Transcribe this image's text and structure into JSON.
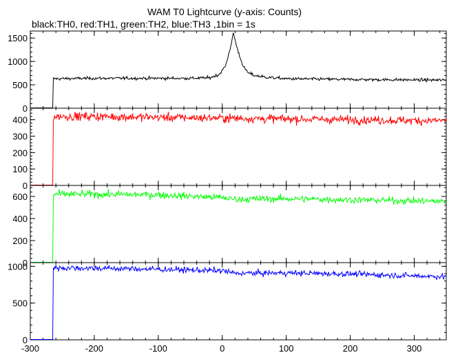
{
  "title": "WAM T0 Lightcurve (y-axis: Counts)",
  "subtitle": "black:TH0, red:TH1, green:TH2, blue:TH3 ,1bin = 1s",
  "chart_data": {
    "type": "line",
    "x_axis": {
      "range": [
        -300,
        350
      ],
      "ticks": [
        -300,
        -200,
        -100,
        0,
        100,
        200,
        300
      ]
    },
    "panels": [
      {
        "series_label": "TH0",
        "color": "#000000",
        "ylim": [
          0,
          1650
        ],
        "yticks": [
          0,
          500,
          1000,
          1500
        ],
        "points": [
          [
            -300,
            0
          ],
          [
            -265,
            0
          ],
          [
            -264,
            630
          ],
          [
            -200,
            640
          ],
          [
            -100,
            640
          ],
          [
            -50,
            640
          ],
          [
            -20,
            650
          ],
          [
            -5,
            720
          ],
          [
            5,
            900
          ],
          [
            10,
            1150
          ],
          [
            15,
            1450
          ],
          [
            18,
            1600
          ],
          [
            20,
            1450
          ],
          [
            25,
            1200
          ],
          [
            30,
            1000
          ],
          [
            35,
            850
          ],
          [
            40,
            760
          ],
          [
            50,
            700
          ],
          [
            70,
            660
          ],
          [
            100,
            630
          ],
          [
            200,
            615
          ],
          [
            300,
            605
          ],
          [
            350,
            600
          ]
        ]
      },
      {
        "series_label": "TH1",
        "color": "#ff0000",
        "ylim": [
          0,
          470
        ],
        "yticks": [
          0,
          100,
          200,
          300,
          400
        ],
        "points": [
          [
            -300,
            0
          ],
          [
            -265,
            0
          ],
          [
            -264,
            420
          ],
          [
            -200,
            420
          ],
          [
            -100,
            415
          ],
          [
            0,
            410
          ],
          [
            100,
            405
          ],
          [
            200,
            400
          ],
          [
            300,
            395
          ],
          [
            350,
            395
          ]
        ]
      },
      {
        "series_label": "TH2",
        "color": "#00ff00",
        "ylim": [
          0,
          700
        ],
        "yticks": [
          0,
          200,
          400,
          600
        ],
        "points": [
          [
            -300,
            0
          ],
          [
            -265,
            0
          ],
          [
            -264,
            620
          ],
          [
            -200,
            620
          ],
          [
            -100,
            615
          ],
          [
            0,
            590
          ],
          [
            20,
            575
          ],
          [
            100,
            580
          ],
          [
            200,
            570
          ],
          [
            300,
            560
          ],
          [
            350,
            555
          ]
        ]
      },
      {
        "series_label": "TH3",
        "color": "#0000ff",
        "ylim": [
          0,
          1050
        ],
        "yticks": [
          0,
          500,
          1000
        ],
        "points": [
          [
            -300,
            0
          ],
          [
            -265,
            0
          ],
          [
            -264,
            980
          ],
          [
            -200,
            975
          ],
          [
            -100,
            960
          ],
          [
            0,
            940
          ],
          [
            20,
            905
          ],
          [
            100,
            910
          ],
          [
            200,
            895
          ],
          [
            300,
            870
          ],
          [
            350,
            860
          ]
        ]
      }
    ],
    "grid": false
  }
}
